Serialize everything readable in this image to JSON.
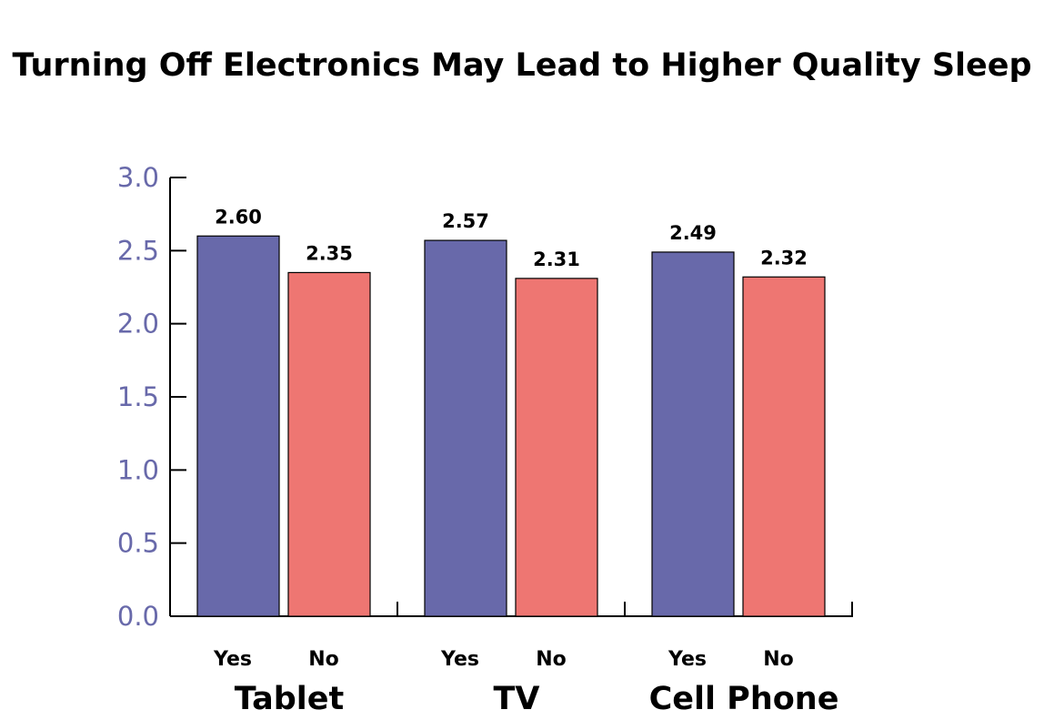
{
  "chart_data": {
    "type": "bar",
    "title": "Turning Off Electronics May Lead to Higher Quality Sleep",
    "xlabel": "",
    "ylabel": "",
    "ylim": [
      0,
      3.0
    ],
    "yticks": [
      "0.0",
      "0.5",
      "1.0",
      "1.5",
      "2.0",
      "2.5",
      "3.0"
    ],
    "grid": false,
    "legend": "none",
    "categories": [
      "Tablet",
      "TV",
      "Cell Phone"
    ],
    "subcategories": [
      "Yes",
      "No"
    ],
    "series": [
      {
        "name": "",
        "label": "Yes",
        "color": "#6869aa",
        "values": [
          2.6,
          2.57,
          2.49
        ],
        "value_labels": [
          "2.60",
          "2.57",
          "2.49"
        ]
      },
      {
        "name": "",
        "label": "No",
        "color": "#ee7672",
        "values": [
          2.35,
          2.31,
          2.32
        ],
        "value_labels": [
          "2.35",
          "2.31",
          "2.32"
        ]
      }
    ]
  }
}
